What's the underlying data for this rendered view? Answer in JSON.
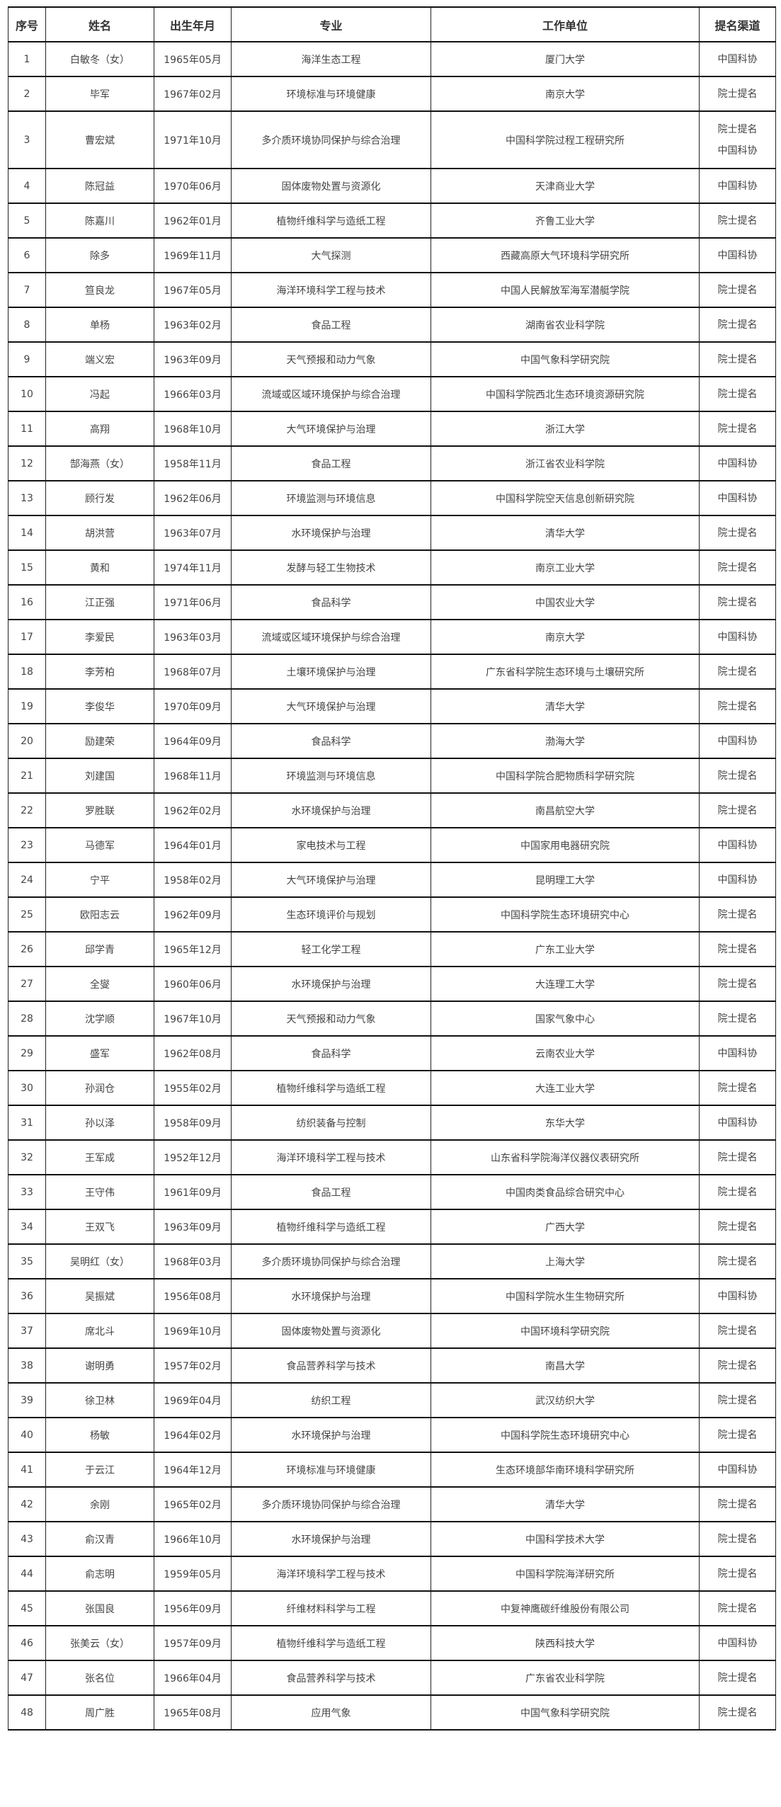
{
  "headers": [
    "序号",
    "姓名",
    "出生年月",
    "专业",
    "工作单位",
    "提名渠道"
  ],
  "rows": [
    [
      "1",
      "白敏冬（女）",
      "1965年05月",
      "海洋生态工程",
      "厦门大学",
      [
        "中国科协"
      ]
    ],
    [
      "2",
      "毕军",
      "1967年02月",
      "环境标准与环境健康",
      "南京大学",
      [
        "院士提名"
      ]
    ],
    [
      "3",
      "曹宏斌",
      "1971年10月",
      "多介质环境协同保护与综合治理",
      "中国科学院过程工程研究所",
      [
        "院士提名",
        "中国科协"
      ]
    ],
    [
      "4",
      "陈冠益",
      "1970年06月",
      "固体废物处置与资源化",
      "天津商业大学",
      [
        "中国科协"
      ]
    ],
    [
      "5",
      "陈嘉川",
      "1962年01月",
      "植物纤维科学与造纸工程",
      "齐鲁工业大学",
      [
        "院士提名"
      ]
    ],
    [
      "6",
      "除多",
      "1969年11月",
      "大气探测",
      "西藏高原大气环境科学研究所",
      [
        "中国科协"
      ]
    ],
    [
      "7",
      "笪良龙",
      "1967年05月",
      "海洋环境科学工程与技术",
      "中国人民解放军海军潜艇学院",
      [
        "院士提名"
      ]
    ],
    [
      "8",
      "单杨",
      "1963年02月",
      "食品工程",
      "湖南省农业科学院",
      [
        "院士提名"
      ]
    ],
    [
      "9",
      "端义宏",
      "1963年09月",
      "天气预报和动力气象",
      "中国气象科学研究院",
      [
        "院士提名"
      ]
    ],
    [
      "10",
      "冯起",
      "1966年03月",
      "流域或区域环境保护与综合治理",
      "中国科学院西北生态环境资源研究院",
      [
        "院士提名"
      ]
    ],
    [
      "11",
      "高翔",
      "1968年10月",
      "大气环境保护与治理",
      "浙江大学",
      [
        "院士提名"
      ]
    ],
    [
      "12",
      "郜海燕（女）",
      "1958年11月",
      "食品工程",
      "浙江省农业科学院",
      [
        "中国科协"
      ]
    ],
    [
      "13",
      "顾行发",
      "1962年06月",
      "环境监测与环境信息",
      "中国科学院空天信息创新研究院",
      [
        "中国科协"
      ]
    ],
    [
      "14",
      "胡洪营",
      "1963年07月",
      "水环境保护与治理",
      "清华大学",
      [
        "院士提名"
      ]
    ],
    [
      "15",
      "黄和",
      "1974年11月",
      "发酵与轻工生物技术",
      "南京工业大学",
      [
        "院士提名"
      ]
    ],
    [
      "16",
      "江正强",
      "1971年06月",
      "食品科学",
      "中国农业大学",
      [
        "院士提名"
      ]
    ],
    [
      "17",
      "李爱民",
      "1963年03月",
      "流域或区域环境保护与综合治理",
      "南京大学",
      [
        "中国科协"
      ]
    ],
    [
      "18",
      "李芳柏",
      "1968年07月",
      "土壤环境保护与治理",
      "广东省科学院生态环境与土壤研究所",
      [
        "院士提名"
      ]
    ],
    [
      "19",
      "李俊华",
      "1970年09月",
      "大气环境保护与治理",
      "清华大学",
      [
        "院士提名"
      ]
    ],
    [
      "20",
      "励建荣",
      "1964年09月",
      "食品科学",
      "渤海大学",
      [
        "中国科协"
      ]
    ],
    [
      "21",
      "刘建国",
      "1968年11月",
      "环境监测与环境信息",
      "中国科学院合肥物质科学研究院",
      [
        "院士提名"
      ]
    ],
    [
      "22",
      "罗胜联",
      "1962年02月",
      "水环境保护与治理",
      "南昌航空大学",
      [
        "院士提名"
      ]
    ],
    [
      "23",
      "马德军",
      "1964年01月",
      "家电技术与工程",
      "中国家用电器研究院",
      [
        "中国科协"
      ]
    ],
    [
      "24",
      "宁平",
      "1958年02月",
      "大气环境保护与治理",
      "昆明理工大学",
      [
        "中国科协"
      ]
    ],
    [
      "25",
      "欧阳志云",
      "1962年09月",
      "生态环境评价与规划",
      "中国科学院生态环境研究中心",
      [
        "院士提名"
      ]
    ],
    [
      "26",
      "邱学青",
      "1965年12月",
      "轻工化学工程",
      "广东工业大学",
      [
        "院士提名"
      ]
    ],
    [
      "27",
      "全燮",
      "1960年06月",
      "水环境保护与治理",
      "大连理工大学",
      [
        "院士提名"
      ]
    ],
    [
      "28",
      "沈学顺",
      "1967年10月",
      "天气预报和动力气象",
      "国家气象中心",
      [
        "院士提名"
      ]
    ],
    [
      "29",
      "盛军",
      "1962年08月",
      "食品科学",
      "云南农业大学",
      [
        "中国科协"
      ]
    ],
    [
      "30",
      "孙润仓",
      "1955年02月",
      "植物纤维科学与造纸工程",
      "大连工业大学",
      [
        "院士提名"
      ]
    ],
    [
      "31",
      "孙以泽",
      "1958年09月",
      "纺织装备与控制",
      "东华大学",
      [
        "中国科协"
      ]
    ],
    [
      "32",
      "王军成",
      "1952年12月",
      "海洋环境科学工程与技术",
      "山东省科学院海洋仪器仪表研究所",
      [
        "院士提名"
      ]
    ],
    [
      "33",
      "王守伟",
      "1961年09月",
      "食品工程",
      "中国肉类食品综合研究中心",
      [
        "院士提名"
      ]
    ],
    [
      "34",
      "王双飞",
      "1963年09月",
      "植物纤维科学与造纸工程",
      "广西大学",
      [
        "院士提名"
      ]
    ],
    [
      "35",
      "吴明红（女）",
      "1968年03月",
      "多介质环境协同保护与综合治理",
      "上海大学",
      [
        "院士提名"
      ]
    ],
    [
      "36",
      "吴振斌",
      "1956年08月",
      "水环境保护与治理",
      "中国科学院水生生物研究所",
      [
        "中国科协"
      ]
    ],
    [
      "37",
      "席北斗",
      "1969年10月",
      "固体废物处置与资源化",
      "中国环境科学研究院",
      [
        "院士提名"
      ]
    ],
    [
      "38",
      "谢明勇",
      "1957年02月",
      "食品营养科学与技术",
      "南昌大学",
      [
        "院士提名"
      ]
    ],
    [
      "39",
      "徐卫林",
      "1969年04月",
      "纺织工程",
      "武汉纺织大学",
      [
        "院士提名"
      ]
    ],
    [
      "40",
      "杨敏",
      "1964年02月",
      "水环境保护与治理",
      "中国科学院生态环境研究中心",
      [
        "院士提名"
      ]
    ],
    [
      "41",
      "于云江",
      "1964年12月",
      "环境标准与环境健康",
      "生态环境部华南环境科学研究所",
      [
        "中国科协"
      ]
    ],
    [
      "42",
      "余刚",
      "1965年02月",
      "多介质环境协同保护与综合治理",
      "清华大学",
      [
        "院士提名"
      ]
    ],
    [
      "43",
      "俞汉青",
      "1966年10月",
      "水环境保护与治理",
      "中国科学技术大学",
      [
        "院士提名"
      ]
    ],
    [
      "44",
      "俞志明",
      "1959年05月",
      "海洋环境科学工程与技术",
      "中国科学院海洋研究所",
      [
        "院士提名"
      ]
    ],
    [
      "45",
      "张国良",
      "1956年09月",
      "纤维材料科学与工程",
      "中复神鹰碳纤维股份有限公司",
      [
        "院士提名"
      ]
    ],
    [
      "46",
      "张美云（女）",
      "1957年09月",
      "植物纤维科学与造纸工程",
      "陕西科技大学",
      [
        "中国科协"
      ]
    ],
    [
      "47",
      "张名位",
      "1966年04月",
      "食品营养科学与技术",
      "广东省农业科学院",
      [
        "院士提名"
      ]
    ],
    [
      "48",
      "周广胜",
      "1965年08月",
      "应用气象",
      "中国气象科学研究院",
      [
        "院士提名"
      ]
    ]
  ]
}
